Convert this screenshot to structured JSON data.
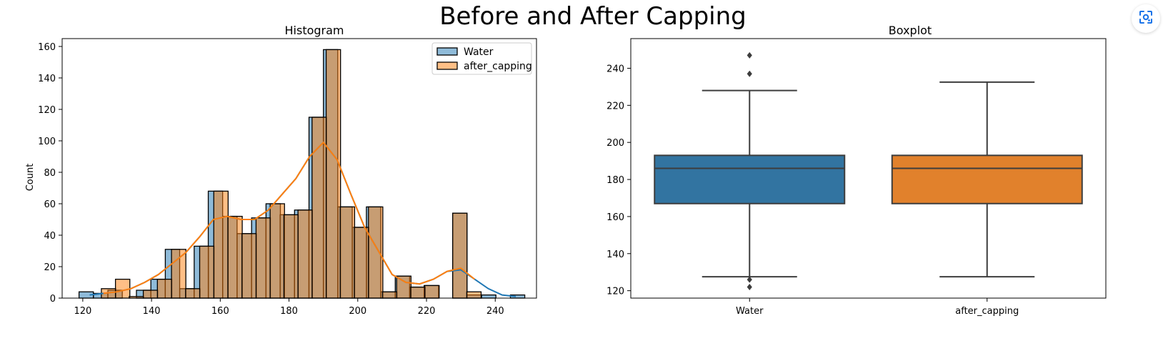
{
  "figure": {
    "suptitle": "Before and After Capping"
  },
  "lens_button": {
    "icon": "image-search-icon"
  },
  "chart_data": [
    {
      "type": "histogram",
      "title": "Histogram",
      "xlabel": "",
      "ylabel": "Count",
      "xlim": [
        114,
        252
      ],
      "ylim": [
        0,
        165
      ],
      "xticks": [
        120,
        140,
        160,
        180,
        200,
        220,
        240
      ],
      "yticks": [
        0,
        20,
        40,
        60,
        80,
        100,
        120,
        140,
        160
      ],
      "bin_width": 4.18,
      "grid": false,
      "legend_position": "top-right",
      "series": [
        {
          "name": "Water",
          "color": "#1f77b4",
          "bins": [
            {
              "x": 121.0,
              "count": 4
            },
            {
              "x": 125.2,
              "count": 3
            },
            {
              "x": 129.4,
              "count": 5
            },
            {
              "x": 133.5,
              "count": 0
            },
            {
              "x": 137.7,
              "count": 5
            },
            {
              "x": 141.9,
              "count": 12
            },
            {
              "x": 146.1,
              "count": 31
            },
            {
              "x": 150.3,
              "count": 6
            },
            {
              "x": 154.5,
              "count": 33
            },
            {
              "x": 158.6,
              "count": 68
            },
            {
              "x": 162.8,
              "count": 52
            },
            {
              "x": 167.0,
              "count": 41
            },
            {
              "x": 171.2,
              "count": 51
            },
            {
              "x": 175.4,
              "count": 60
            },
            {
              "x": 179.5,
              "count": 53
            },
            {
              "x": 183.7,
              "count": 56
            },
            {
              "x": 187.9,
              "count": 115
            },
            {
              "x": 192.1,
              "count": 158
            },
            {
              "x": 196.3,
              "count": 58
            },
            {
              "x": 200.5,
              "count": 45
            },
            {
              "x": 204.6,
              "count": 58
            },
            {
              "x": 208.8,
              "count": 4
            },
            {
              "x": 213.0,
              "count": 14
            },
            {
              "x": 217.2,
              "count": 7
            },
            {
              "x": 221.4,
              "count": 8
            },
            {
              "x": 225.6,
              "count": 0
            },
            {
              "x": 229.7,
              "count": 54
            },
            {
              "x": 233.9,
              "count": 2
            },
            {
              "x": 238.1,
              "count": 2
            },
            {
              "x": 242.3,
              "count": 0
            },
            {
              "x": 246.5,
              "count": 2
            }
          ],
          "kde": {
            "x": [
              122,
              126,
              130,
              134,
              138,
              142,
              146,
              150,
              154,
              158,
              162,
              166,
              170,
              174,
              178,
              182,
              186,
              190,
              194,
              198,
              202,
              206,
              210,
              214,
              218,
              222,
              226,
              230,
              234,
              238,
              242,
              246
            ],
            "y": [
              2,
              3,
              4,
              6,
              10,
              15,
              22,
              29,
              39,
              50,
              52,
              50,
              50,
              56,
              66,
              76,
              90,
              99,
              88,
              66,
              45,
              30,
              15,
              10,
              9,
              12,
              17,
              18,
              12,
              6,
              2,
              1
            ]
          }
        },
        {
          "name": "after_capping",
          "color": "#ff7f0e",
          "bins": [
            {
              "x": 127.5,
              "count": 6
            },
            {
              "x": 131.6,
              "count": 12
            },
            {
              "x": 135.6,
              "count": 1
            },
            {
              "x": 139.7,
              "count": 5
            },
            {
              "x": 143.8,
              "count": 12
            },
            {
              "x": 147.9,
              "count": 31
            },
            {
              "x": 152.0,
              "count": 6
            },
            {
              "x": 156.1,
              "count": 33
            },
            {
              "x": 160.2,
              "count": 68
            },
            {
              "x": 164.3,
              "count": 52
            },
            {
              "x": 168.4,
              "count": 41
            },
            {
              "x": 172.5,
              "count": 51
            },
            {
              "x": 176.6,
              "count": 60
            },
            {
              "x": 180.6,
              "count": 53
            },
            {
              "x": 184.7,
              "count": 56
            },
            {
              "x": 188.8,
              "count": 115
            },
            {
              "x": 192.9,
              "count": 158
            },
            {
              "x": 197.0,
              "count": 58
            },
            {
              "x": 201.1,
              "count": 45
            },
            {
              "x": 205.2,
              "count": 58
            },
            {
              "x": 209.3,
              "count": 4
            },
            {
              "x": 213.4,
              "count": 14
            },
            {
              "x": 217.5,
              "count": 7
            },
            {
              "x": 221.6,
              "count": 8
            },
            {
              "x": 225.7,
              "count": 0
            },
            {
              "x": 229.7,
              "count": 54
            },
            {
              "x": 233.8,
              "count": 4
            }
          ],
          "kde": {
            "x": [
              126,
              130,
              134,
              138,
              142,
              146,
              150,
              154,
              158,
              162,
              166,
              170,
              174,
              178,
              182,
              186,
              190,
              194,
              198,
              202,
              206,
              210,
              214,
              218,
              222,
              226,
              230,
              234
            ],
            "y": [
              3,
              4,
              6,
              10,
              15,
              22,
              29,
              39,
              50,
              52,
              50,
              50,
              56,
              66,
              76,
              90,
              99,
              88,
              66,
              45,
              30,
              15,
              10,
              9,
              12,
              17,
              19,
              12
            ]
          }
        }
      ]
    },
    {
      "type": "boxplot",
      "title": "Boxplot",
      "xlabel": "",
      "ylabel": "",
      "ylim": [
        116,
        256
      ],
      "yticks": [
        120,
        140,
        160,
        180,
        200,
        220,
        240
      ],
      "grid": false,
      "categories": [
        "Water",
        "after_capping"
      ],
      "boxes": [
        {
          "name": "Water",
          "color": "#3274a1",
          "whisker_low": 127.5,
          "q1": 167,
          "median": 186,
          "q3": 193,
          "whisker_high": 228,
          "outliers": [
            247,
            237,
            126,
            122
          ]
        },
        {
          "name": "after_capping",
          "color": "#e1812c",
          "whisker_low": 127.5,
          "q1": 167,
          "median": 186,
          "q3": 193,
          "whisker_high": 232.5,
          "outliers": []
        }
      ]
    }
  ]
}
